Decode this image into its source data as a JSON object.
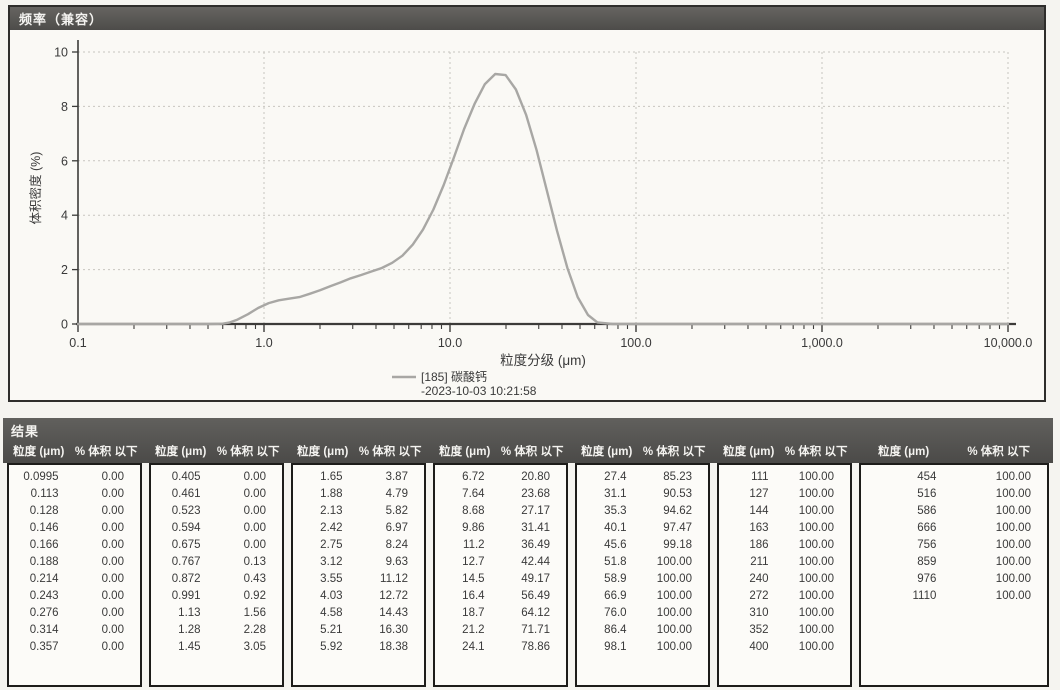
{
  "frequency_panel": {
    "title": "频率（兼容）"
  },
  "chart_data": {
    "type": "line",
    "title": "频率（兼容）",
    "xlabel": "粒度分级 (μm)",
    "ylabel": "体积密度 (%)",
    "x_scale": "log10",
    "xlim": [
      0.1,
      10000
    ],
    "ylim": [
      0,
      10
    ],
    "x_tick_labels": [
      "0.1",
      "1.0",
      "10.0",
      "100.0",
      "1,000.0",
      "10,000.0"
    ],
    "y_tick_values": [
      0,
      2,
      4,
      6,
      8,
      10
    ],
    "grid": "dashed",
    "legend_position": "bottom",
    "axis_color": "#3c3b39",
    "grid_color": "#c7c5c0",
    "series": [
      {
        "name": "[185] 碳酸钙",
        "subtitle": "-2023-10-03 10:21:58",
        "color": "#a8a7a4",
        "x": [
          0.1,
          0.3,
          0.5,
          0.6,
          0.65,
          0.72,
          0.82,
          0.93,
          1.06,
          1.2,
          1.36,
          1.55,
          1.76,
          2.0,
          2.27,
          2.58,
          2.93,
          3.33,
          3.78,
          4.3,
          4.89,
          5.55,
          6.31,
          7.16,
          8.14,
          9.25,
          10.5,
          11.9,
          13.6,
          15.4,
          17.5,
          19.9,
          22.6,
          25.7,
          29.2,
          33.1,
          37.6,
          42.8,
          48.6,
          55.2,
          62,
          75,
          100,
          1000,
          10000
        ],
        "y": [
          0,
          0,
          0,
          0.01,
          0.05,
          0.16,
          0.36,
          0.59,
          0.77,
          0.87,
          0.93,
          0.99,
          1.11,
          1.24,
          1.39,
          1.53,
          1.68,
          1.8,
          1.93,
          2.06,
          2.25,
          2.51,
          2.92,
          3.47,
          4.21,
          5.11,
          6.12,
          7.17,
          8.11,
          8.82,
          9.19,
          9.15,
          8.62,
          7.68,
          6.39,
          4.93,
          3.43,
          2.06,
          0.99,
          0.33,
          0.06,
          0,
          0,
          0,
          0
        ]
      }
    ]
  },
  "results_panel": {
    "title": "结果",
    "col_size": "粒度 (μm)",
    "col_pct": "% 体积 以下",
    "groups": [
      [
        [
          "0.0995",
          "0.00"
        ],
        [
          "0.113",
          "0.00"
        ],
        [
          "0.128",
          "0.00"
        ],
        [
          "0.146",
          "0.00"
        ],
        [
          "0.166",
          "0.00"
        ],
        [
          "0.188",
          "0.00"
        ],
        [
          "0.214",
          "0.00"
        ],
        [
          "0.243",
          "0.00"
        ],
        [
          "0.276",
          "0.00"
        ],
        [
          "0.314",
          "0.00"
        ],
        [
          "0.357",
          "0.00"
        ]
      ],
      [
        [
          "0.405",
          "0.00"
        ],
        [
          "0.461",
          "0.00"
        ],
        [
          "0.523",
          "0.00"
        ],
        [
          "0.594",
          "0.00"
        ],
        [
          "0.675",
          "0.00"
        ],
        [
          "0.767",
          "0.13"
        ],
        [
          "0.872",
          "0.43"
        ],
        [
          "0.991",
          "0.92"
        ],
        [
          "1.13",
          "1.56"
        ],
        [
          "1.28",
          "2.28"
        ],
        [
          "1.45",
          "3.05"
        ]
      ],
      [
        [
          "1.65",
          "3.87"
        ],
        [
          "1.88",
          "4.79"
        ],
        [
          "2.13",
          "5.82"
        ],
        [
          "2.42",
          "6.97"
        ],
        [
          "2.75",
          "8.24"
        ],
        [
          "3.12",
          "9.63"
        ],
        [
          "3.55",
          "11.12"
        ],
        [
          "4.03",
          "12.72"
        ],
        [
          "4.58",
          "14.43"
        ],
        [
          "5.21",
          "16.30"
        ],
        [
          "5.92",
          "18.38"
        ]
      ],
      [
        [
          "6.72",
          "20.80"
        ],
        [
          "7.64",
          "23.68"
        ],
        [
          "8.68",
          "27.17"
        ],
        [
          "9.86",
          "31.41"
        ],
        [
          "11.2",
          "36.49"
        ],
        [
          "12.7",
          "42.44"
        ],
        [
          "14.5",
          "49.17"
        ],
        [
          "16.4",
          "56.49"
        ],
        [
          "18.7",
          "64.12"
        ],
        [
          "21.2",
          "71.71"
        ],
        [
          "24.1",
          "78.86"
        ]
      ],
      [
        [
          "27.4",
          "85.23"
        ],
        [
          "31.1",
          "90.53"
        ],
        [
          "35.3",
          "94.62"
        ],
        [
          "40.1",
          "97.47"
        ],
        [
          "45.6",
          "99.18"
        ],
        [
          "51.8",
          "100.00"
        ],
        [
          "58.9",
          "100.00"
        ],
        [
          "66.9",
          "100.00"
        ],
        [
          "76.0",
          "100.00"
        ],
        [
          "86.4",
          "100.00"
        ],
        [
          "98.1",
          "100.00"
        ]
      ],
      [
        [
          "111",
          "100.00"
        ],
        [
          "127",
          "100.00"
        ],
        [
          "144",
          "100.00"
        ],
        [
          "163",
          "100.00"
        ],
        [
          "186",
          "100.00"
        ],
        [
          "211",
          "100.00"
        ],
        [
          "240",
          "100.00"
        ],
        [
          "272",
          "100.00"
        ],
        [
          "310",
          "100.00"
        ],
        [
          "352",
          "100.00"
        ],
        [
          "400",
          "100.00"
        ]
      ],
      [
        [
          "454",
          "100.00"
        ],
        [
          "516",
          "100.00"
        ],
        [
          "586",
          "100.00"
        ],
        [
          "666",
          "100.00"
        ],
        [
          "756",
          "100.00"
        ],
        [
          "859",
          "100.00"
        ],
        [
          "976",
          "100.00"
        ],
        [
          "1110",
          "100.00"
        ]
      ]
    ]
  }
}
